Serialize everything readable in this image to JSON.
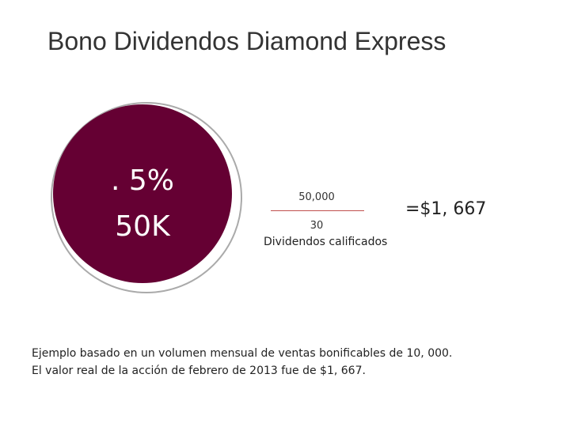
{
  "title": "Bono Dividendos Diamond Express",
  "circle": {
    "line1": ". 5%",
    "line2": "50K"
  },
  "fraction": {
    "numerator": "50,000",
    "denominator": "30",
    "denominator_label": "Dividendos calificados",
    "result": "=$1, 667"
  },
  "footnote": [
    "Ejemplo basado en un volumen mensual de ventas bonificables de 10, 000.",
    "El valor real de la acción de febrero de 2013 fue de $1, 667."
  ]
}
